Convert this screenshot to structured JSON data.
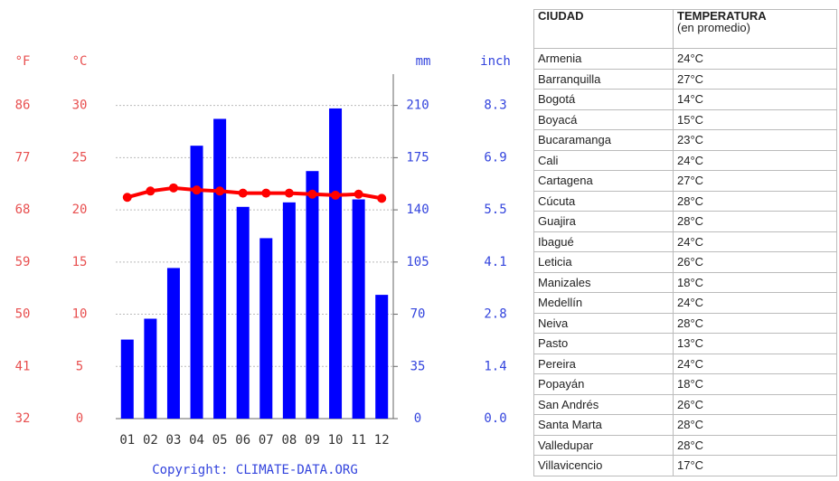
{
  "chart_data": {
    "type": "bar_line",
    "axis_labels": {
      "f": "°F",
      "c": "°C",
      "mm": "mm",
      "inch": "inch"
    },
    "categories": [
      "01",
      "02",
      "03",
      "04",
      "05",
      "06",
      "07",
      "08",
      "09",
      "10",
      "11",
      "12"
    ],
    "series": [
      {
        "type": "bar",
        "axis": "y2",
        "color": "#0000ff",
        "values": [
          53,
          67,
          101,
          183,
          201,
          142,
          121,
          145,
          166,
          208,
          147,
          83
        ]
      },
      {
        "type": "line",
        "axis": "y",
        "color": "#ff0000",
        "values": [
          21.2,
          21.8,
          22.1,
          21.9,
          21.8,
          21.6,
          21.6,
          21.6,
          21.5,
          21.4,
          21.5,
          21.1
        ]
      }
    ],
    "ylim": [
      0,
      33
    ],
    "yticks": [
      0,
      5,
      10,
      15,
      20,
      25,
      30
    ],
    "yticks_alt": [
      {
        "value": 0,
        "label": "32"
      },
      {
        "value": 5,
        "label": "41"
      },
      {
        "value": 10,
        "label": "50"
      },
      {
        "value": 15,
        "label": "59"
      },
      {
        "value": 20,
        "label": "68"
      },
      {
        "value": 25,
        "label": "77"
      },
      {
        "value": 30,
        "label": "86"
      }
    ],
    "y2lim": [
      0,
      231
    ],
    "y2ticks": [
      0,
      35,
      70,
      105,
      140,
      175,
      210
    ],
    "y2ticks_alt": [
      {
        "value": 0,
        "label": "0.0"
      },
      {
        "value": 35,
        "label": "1.4"
      },
      {
        "value": 70,
        "label": "2.8"
      },
      {
        "value": 105,
        "label": "4.1"
      },
      {
        "value": 140,
        "label": "5.5"
      },
      {
        "value": 175,
        "label": "6.9"
      },
      {
        "value": 210,
        "label": "8.3"
      }
    ],
    "grid": true,
    "copyright": "Copyright: CLIMATE-DATA.ORG"
  },
  "table": {
    "header": [
      "CIUDAD",
      "TEMPERATURA",
      "(en promedio)"
    ],
    "rows": [
      [
        "Armenia",
        "24°C"
      ],
      [
        "Barranquilla",
        "27°C"
      ],
      [
        "Bogotá",
        "14°C"
      ],
      [
        "Boyacá",
        "15°C"
      ],
      [
        "Bucaramanga",
        "23°C"
      ],
      [
        "Cali",
        "24°C"
      ],
      [
        "Cartagena",
        "27°C"
      ],
      [
        "Cúcuta",
        "28°C"
      ],
      [
        "Guajira",
        "28°C"
      ],
      [
        "Ibagué",
        "24°C"
      ],
      [
        "Leticia",
        "26°C"
      ],
      [
        "Manizales",
        "18°C"
      ],
      [
        "Medellín",
        "24°C"
      ],
      [
        "Neiva",
        "28°C"
      ],
      [
        "Pasto",
        "13°C"
      ],
      [
        "Pereira",
        "24°C"
      ],
      [
        "Popayán",
        "18°C"
      ],
      [
        "San Andrés",
        "26°C"
      ],
      [
        "Santa Marta",
        "28°C"
      ],
      [
        "Valledupar",
        "28°C"
      ],
      [
        "Villavicencio",
        "17°C"
      ]
    ]
  }
}
